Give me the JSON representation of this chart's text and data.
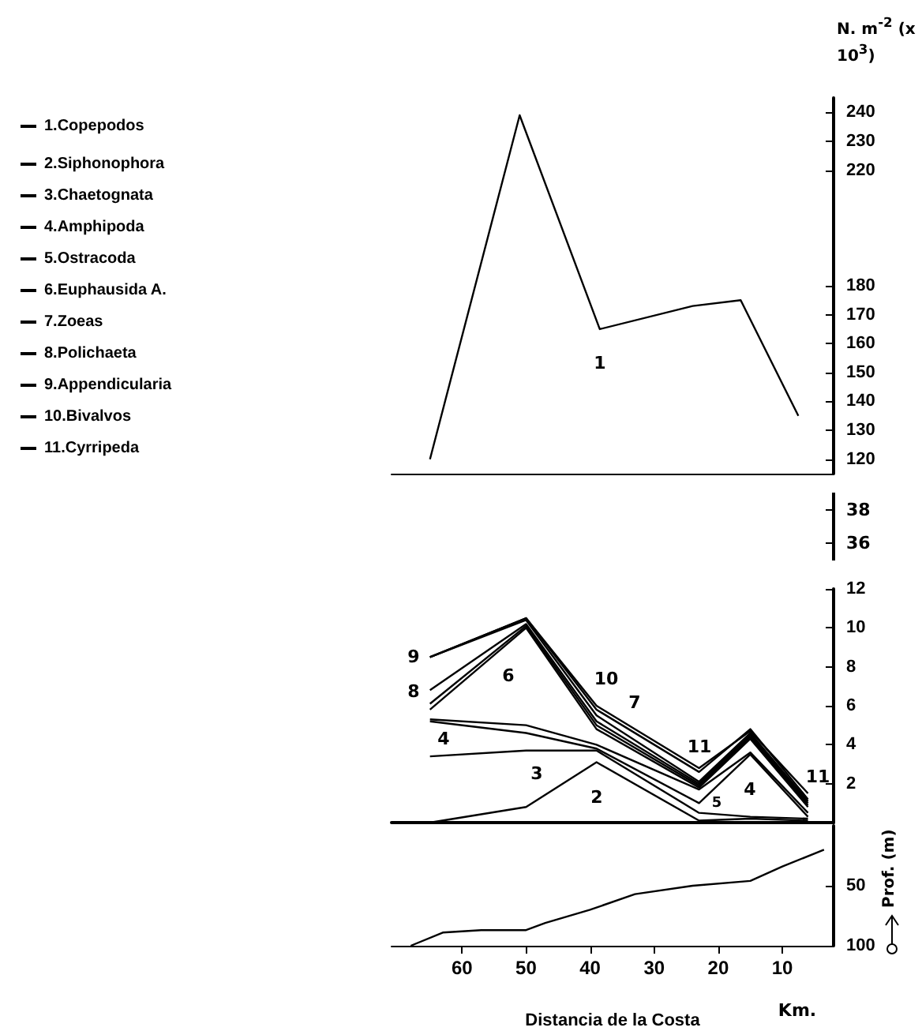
{
  "chart_data": [
    {
      "type": "line",
      "ylabel": "N. m$^{-2}$ (x 10$^{3}$)",
      "annotations": [
        "1"
      ],
      "xlim": [
        71,
        2
      ],
      "ylim": [
        115,
        245
      ],
      "yticks": [
        120,
        130,
        140,
        150,
        160,
        170,
        180,
        220,
        230,
        240
      ],
      "tick_labels": "y",
      "series": [
        {
          "name": "1.Copepodos",
          "color": "#000000",
          "x": [
            65,
            51,
            38.5,
            24,
            16.5,
            7.5
          ],
          "values": [
            120,
            239,
            165,
            173,
            175,
            135
          ]
        }
      ],
      "grid": false,
      "legend": "top left",
      "marker": "none",
      "line_style": "solid"
    },
    {
      "type": "other",
      "annotations": [
        "38",
        "36"
      ]
    },
    {
      "type": "line",
      "annotations": [
        "9",
        "8",
        "6",
        "10",
        "7",
        "4",
        "3",
        "2",
        "5",
        "11",
        "4",
        "11"
      ],
      "x": [
        65,
        50,
        39,
        23,
        15,
        6
      ],
      "xlim": [
        71,
        2
      ],
      "xticks": [
        60,
        50,
        40,
        30,
        20,
        10
      ],
      "ylim": [
        0,
        12
      ],
      "yticks": [
        2,
        4,
        6,
        8,
        10,
        12
      ],
      "tick_labels": "y",
      "series": [
        {
          "name": "2.Siphonophora",
          "color": "#000000",
          "values": [
            0,
            0.8,
            3.1,
            0.1,
            0.2,
            0.1
          ]
        },
        {
          "name": "3.Chaetognata",
          "color": "#000000",
          "values": [
            3.4,
            3.7,
            3.7,
            0.5,
            0.3,
            0.2
          ]
        },
        {
          "name": "4.Amphipoda",
          "color": "#000000",
          "values": [
            5.2,
            4.6,
            3.8,
            1.0,
            3.5,
            0.3
          ]
        },
        {
          "name": "5.Ostracoda",
          "color": "#000000",
          "values": [
            5.3,
            5.0,
            4.0,
            1.7,
            3.6,
            0.5
          ]
        },
        {
          "name": "6.Euphausida A.",
          "color": "#000000",
          "values": [
            5.8,
            10.0,
            4.8,
            1.8,
            4.3,
            0.8
          ]
        },
        {
          "name": "7.Zoeas",
          "color": "#000000",
          "values": [
            6.1,
            10.1,
            5.0,
            1.9,
            4.4,
            0.9
          ]
        },
        {
          "name": "8.Polichaeta",
          "color": "#000000",
          "values": [
            6.8,
            10.2,
            5.2,
            2.0,
            4.5,
            1.0
          ]
        },
        {
          "name": "9.Appendicularia",
          "color": "#000000",
          "values": [
            8.5,
            10.4,
            5.5,
            2.1,
            4.6,
            1.1
          ]
        },
        {
          "name": "10.Bivalvos",
          "color": "#000000",
          "values": [
            8.5,
            10.5,
            5.8,
            2.6,
            4.8,
            1.2
          ]
        },
        {
          "name": "11.Cyrripeda",
          "color": "#000000",
          "values": [
            8.5,
            10.5,
            6.0,
            2.8,
            4.7,
            1.5
          ]
        }
      ],
      "grid": false,
      "legend": "top left",
      "marker": "none",
      "line_style": "solid"
    },
    {
      "type": "line",
      "xlabel": "Distancia de la Costa",
      "ylabel": "Prof. (m)",
      "annotations": [
        "Km."
      ],
      "x": [
        68,
        63,
        57,
        50,
        47,
        40,
        33,
        24,
        15,
        10,
        3.5
      ],
      "xlim": [
        71,
        2
      ],
      "xticks": [
        60,
        50,
        40,
        30,
        20,
        10
      ],
      "ylim": [
        100,
        0
      ],
      "yticks": [
        50,
        100
      ],
      "series": [
        {
          "color": "#000000",
          "values": [
            100,
            89,
            87,
            87,
            81,
            70,
            57,
            50,
            46,
            34,
            20
          ]
        }
      ],
      "grid": false,
      "marker": "none",
      "line_style": "solid"
    }
  ]
}
